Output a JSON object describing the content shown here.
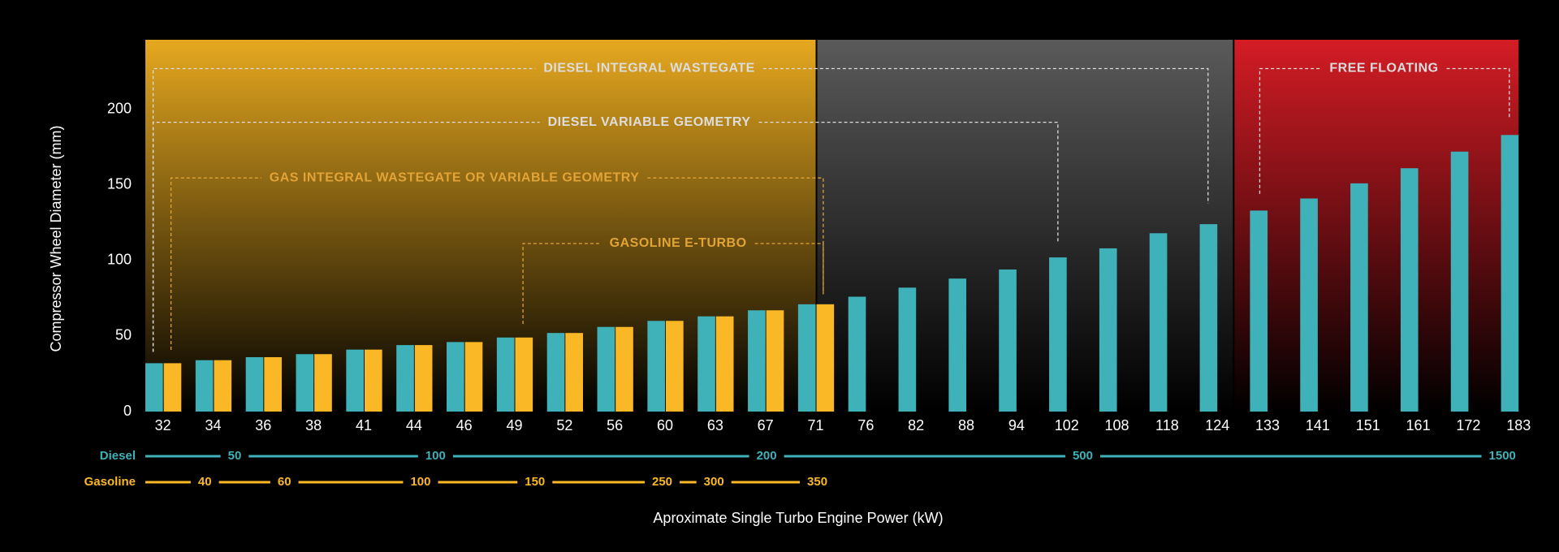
{
  "chart_data": {
    "type": "bar",
    "y_label": "Compressor Wheel Diameter (mm)",
    "x_label": "Aproximate Single Turbo Engine Power (kW)",
    "categories": [
      "32",
      "34",
      "36",
      "38",
      "41",
      "44",
      "46",
      "49",
      "52",
      "56",
      "60",
      "63",
      "67",
      "71",
      "76",
      "82",
      "88",
      "94",
      "102",
      "108",
      "118",
      "124",
      "133",
      "141",
      "151",
      "161",
      "172",
      "183"
    ],
    "series": [
      {
        "name": "Diesel",
        "color": "#3fb1b9",
        "values": [
          32,
          34,
          36,
          38,
          41,
          44,
          46,
          49,
          52,
          56,
          60,
          63,
          67,
          71,
          76,
          82,
          88,
          94,
          102,
          108,
          118,
          124,
          133,
          141,
          151,
          161,
          172,
          183
        ]
      },
      {
        "name": "Gasoline",
        "color": "#fbb826",
        "values": [
          32,
          34,
          36,
          38,
          41,
          44,
          46,
          49,
          52,
          56,
          60,
          63,
          67,
          71,
          null,
          null,
          null,
          null,
          null,
          null,
          null,
          null,
          null,
          null,
          null,
          null,
          null,
          null
        ]
      }
    ],
    "ylim": [
      0,
      246
    ],
    "yticks": [
      0,
      50,
      100,
      150,
      200
    ],
    "annotations": [
      "DIESEL INTEGRAL WASTEGATE",
      "DIESEL VARIABLE GEOMETRY",
      "GAS INTEGRAL WASTEGATE OR VARIABLE GEOMETRY",
      "GASOLINE E-TURBO",
      "FREE FLOATING"
    ],
    "diesel_power_ticks": [
      50,
      100,
      200,
      500,
      1500
    ],
    "gasoline_power_ticks": [
      40,
      60,
      100,
      150,
      250,
      300,
      350
    ]
  }
}
